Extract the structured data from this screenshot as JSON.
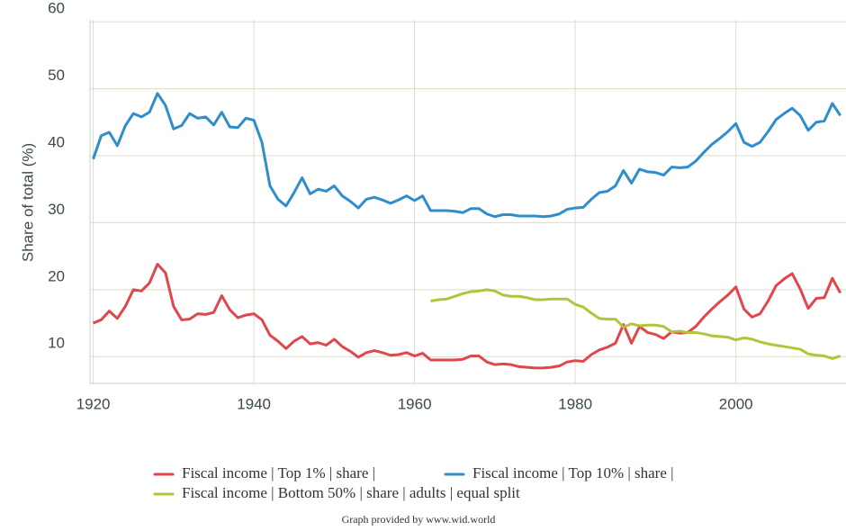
{
  "chart_data": {
    "type": "line",
    "y_label": "Share of total (%)",
    "credit": "Graph provided by www.wid.world",
    "xlim": [
      1919.6,
      2013.7
    ],
    "ylim": [
      6,
      60.3
    ],
    "xticks": [
      1920,
      1940,
      1960,
      1980,
      2000
    ],
    "yticks": [
      10,
      20,
      30,
      40,
      50,
      60
    ],
    "grid": true,
    "x": [
      1920,
      1921,
      1922,
      1923,
      1924,
      1925,
      1926,
      1927,
      1928,
      1929,
      1930,
      1931,
      1932,
      1933,
      1934,
      1935,
      1936,
      1937,
      1938,
      1939,
      1940,
      1941,
      1942,
      1943,
      1944,
      1945,
      1946,
      1947,
      1948,
      1949,
      1950,
      1951,
      1952,
      1953,
      1954,
      1955,
      1956,
      1957,
      1958,
      1959,
      1960,
      1961,
      1962,
      1963,
      1964,
      1965,
      1966,
      1967,
      1968,
      1969,
      1970,
      1971,
      1972,
      1973,
      1974,
      1975,
      1976,
      1977,
      1978,
      1979,
      1980,
      1981,
      1982,
      1983,
      1984,
      1985,
      1986,
      1987,
      1988,
      1989,
      1990,
      1991,
      1992,
      1993,
      1994,
      1995,
      1996,
      1997,
      1998,
      1999,
      2000,
      2001,
      2002,
      2003,
      2004,
      2005,
      2006,
      2007,
      2008,
      2009,
      2010,
      2011,
      2012,
      2013
    ],
    "series": [
      {
        "name": "Fiscal income | Top 1% | share |",
        "color": "#e0474c",
        "values": [
          15,
          15.5,
          16.8,
          15.7,
          17.5,
          20,
          19.8,
          21,
          23.8,
          22.5,
          17.5,
          15.5,
          15.6,
          16.4,
          16.3,
          16.6,
          19.1,
          17,
          15.8,
          16.2,
          16.4,
          15.5,
          13.2,
          12.3,
          11.2,
          12.3,
          13,
          11.9,
          12.1,
          11.7,
          12.6,
          11.5,
          10.8,
          9.9,
          10.6,
          10.9,
          10.6,
          10.2,
          10.3,
          10.6,
          10.1,
          10.5,
          9.5,
          9.5,
          9.5,
          9.5,
          9.6,
          10.1,
          10.1,
          9.2,
          8.8,
          8.9,
          8.8,
          8.5,
          8.4,
          8.3,
          8.3,
          8.4,
          8.6,
          9.2,
          9.4,
          9.3,
          10.3,
          11,
          11.4,
          12,
          14.8,
          12,
          14.5,
          13.6,
          13.3,
          12.7,
          13.7,
          13.5,
          13.6,
          14.5,
          15.9,
          17.1,
          18.2,
          19.2,
          20.4,
          17.1,
          15.9,
          16.4,
          18.3,
          20.6,
          21.6,
          22.4,
          20.1,
          17.2,
          18.7,
          18.8,
          21.7,
          19.5
        ]
      },
      {
        "name": "Fiscal income | Top 10% | share |",
        "color": "#2f8dcc",
        "values": [
          39.5,
          43,
          43.5,
          41.5,
          44.5,
          46.3,
          45.8,
          46.5,
          49.3,
          47.5,
          44,
          44.5,
          46.3,
          45.6,
          45.8,
          44.6,
          46.5,
          44.3,
          44.2,
          45.6,
          45.3,
          42,
          35.5,
          33.5,
          32.5,
          34.5,
          36.7,
          34.3,
          35,
          34.7,
          35.5,
          34,
          33.2,
          32.2,
          33.5,
          33.8,
          33.4,
          32.9,
          33.4,
          34,
          33.3,
          34,
          31.8,
          31.8,
          31.8,
          31.7,
          31.5,
          32.1,
          32.1,
          31.3,
          30.9,
          31.2,
          31.2,
          31,
          31,
          31,
          30.9,
          31,
          31.3,
          32,
          32.2,
          32.3,
          33.5,
          34.5,
          34.7,
          35.5,
          37.8,
          35.9,
          38,
          37.6,
          37.5,
          37.1,
          38.3,
          38.2,
          38.3,
          39.2,
          40.5,
          41.7,
          42.6,
          43.6,
          44.8,
          42,
          41.4,
          42,
          43.6,
          45.4,
          46.3,
          47.1,
          46,
          43.8,
          45,
          45.2,
          47.8,
          46
        ]
      },
      {
        "name": "Fiscal income | Bottom 50% | share | adults | equal split",
        "color": "#b5c33a",
        "values": [
          null,
          null,
          null,
          null,
          null,
          null,
          null,
          null,
          null,
          null,
          null,
          null,
          null,
          null,
          null,
          null,
          null,
          null,
          null,
          null,
          null,
          null,
          null,
          null,
          null,
          null,
          null,
          null,
          null,
          null,
          null,
          null,
          null,
          null,
          null,
          null,
          null,
          null,
          null,
          null,
          null,
          null,
          18.3,
          18.5,
          18.6,
          19,
          19.4,
          19.7,
          19.8,
          20,
          19.8,
          19.2,
          19,
          19,
          18.8,
          18.5,
          18.5,
          18.6,
          18.6,
          18.6,
          17.8,
          17.4,
          16.5,
          15.7,
          15.6,
          15.6,
          14.4,
          14.9,
          14.6,
          14.7,
          14.7,
          14.5,
          13.7,
          13.8,
          13.6,
          13.6,
          13.4,
          13.1,
          13,
          12.9,
          12.5,
          12.8,
          12.6,
          12.2,
          11.9,
          11.7,
          11.5,
          11.3,
          11.1,
          10.4,
          10.2,
          10.1,
          9.7,
          10.1
        ]
      }
    ]
  }
}
